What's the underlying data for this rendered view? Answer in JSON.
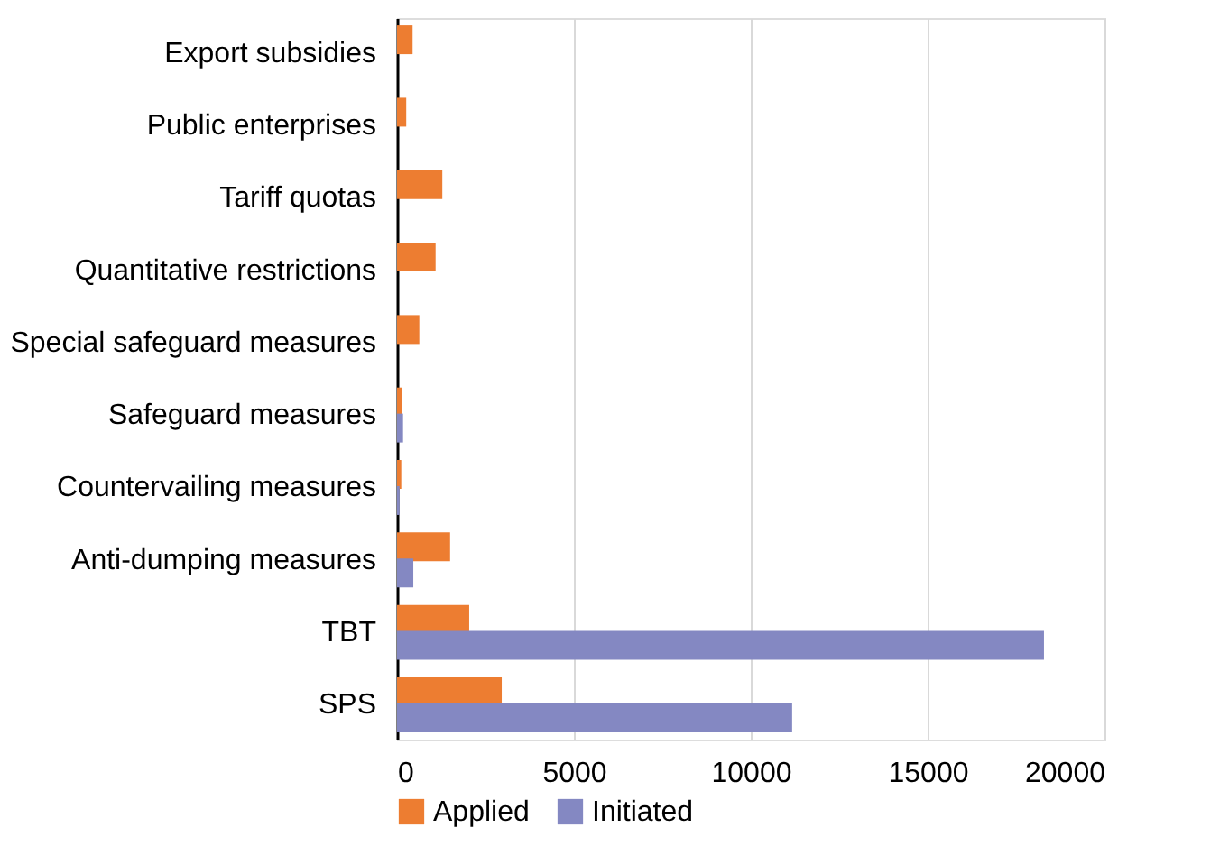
{
  "chart_data": {
    "type": "bar",
    "orientation": "horizontal",
    "categories": [
      "Export subsidies",
      "Public enterprises",
      "Tariff quotas ",
      "Quantitative restrictions",
      "Special safeguard measures",
      "Safeguard measures",
      "Countervailing measures",
      "Anti-dumping measures",
      "TBT",
      "SPS"
    ],
    "series": [
      {
        "name": "Applied",
        "color": "#ed7d31",
        "values": [
          440,
          260,
          1280,
          1090,
          630,
          150,
          120,
          1500,
          2040,
          2960
        ]
      },
      {
        "name": "Initiated",
        "color": "#8488c2",
        "values": [
          null,
          null,
          null,
          null,
          null,
          170,
          70,
          460,
          18290,
          11170
        ]
      }
    ],
    "xlim": [
      0,
      20000
    ],
    "xticks": [
      0,
      5000,
      10000,
      15000,
      20000
    ],
    "grid": "x",
    "legend": "bottom left"
  }
}
